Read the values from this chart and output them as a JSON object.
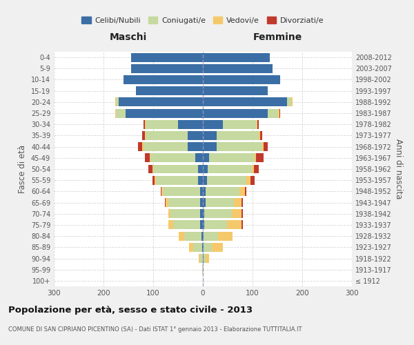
{
  "age_groups": [
    "100+",
    "95-99",
    "90-94",
    "85-89",
    "80-84",
    "75-79",
    "70-74",
    "65-69",
    "60-64",
    "55-59",
    "50-54",
    "45-49",
    "40-44",
    "35-39",
    "30-34",
    "25-29",
    "20-24",
    "15-19",
    "10-14",
    "5-9",
    "0-4"
  ],
  "birth_years": [
    "≤ 1912",
    "1913-1917",
    "1918-1922",
    "1923-1927",
    "1928-1932",
    "1933-1937",
    "1938-1942",
    "1943-1947",
    "1948-1952",
    "1953-1957",
    "1958-1962",
    "1963-1967",
    "1968-1972",
    "1973-1977",
    "1978-1982",
    "1983-1987",
    "1988-1992",
    "1993-1997",
    "1998-2002",
    "2003-2007",
    "2008-2012"
  ],
  "male": {
    "celibi": [
      0,
      0,
      0,
      2,
      3,
      5,
      5,
      5,
      5,
      10,
      10,
      15,
      30,
      30,
      50,
      155,
      170,
      135,
      160,
      145,
      145
    ],
    "coniugati": [
      0,
      1,
      5,
      18,
      35,
      55,
      60,
      65,
      75,
      85,
      90,
      90,
      90,
      85,
      65,
      20,
      5,
      0,
      0,
      0,
      0
    ],
    "vedovi": [
      0,
      1,
      4,
      8,
      10,
      10,
      5,
      5,
      3,
      2,
      2,
      2,
      2,
      2,
      2,
      2,
      2,
      0,
      0,
      0,
      0
    ],
    "divorziati": [
      0,
      0,
      0,
      0,
      0,
      0,
      0,
      2,
      2,
      5,
      8,
      10,
      8,
      5,
      2,
      0,
      0,
      0,
      0,
      0,
      0
    ]
  },
  "female": {
    "nubili": [
      0,
      0,
      1,
      2,
      2,
      3,
      3,
      5,
      5,
      8,
      10,
      12,
      28,
      28,
      40,
      130,
      170,
      130,
      155,
      140,
      135
    ],
    "coniugate": [
      0,
      1,
      4,
      16,
      28,
      45,
      55,
      58,
      68,
      80,
      88,
      92,
      92,
      85,
      68,
      22,
      8,
      0,
      0,
      0,
      0
    ],
    "vedove": [
      0,
      1,
      8,
      22,
      30,
      30,
      20,
      15,
      12,
      8,
      5,
      3,
      2,
      2,
      2,
      2,
      2,
      0,
      0,
      0,
      0
    ],
    "divorziate": [
      0,
      0,
      0,
      0,
      0,
      2,
      2,
      2,
      2,
      8,
      10,
      15,
      8,
      5,
      3,
      2,
      0,
      0,
      0,
      0,
      0
    ]
  },
  "colors": {
    "celibi": "#3b6ea5",
    "coniugati": "#c5d9a0",
    "vedovi": "#f5c96b",
    "divorziati": "#c0392b"
  },
  "title": "Popolazione per età, sesso e stato civile - 2013",
  "subtitle": "COMUNE DI SAN CIPRIANO PICENTINO (SA) - Dati ISTAT 1° gennaio 2013 - Elaborazione TUTTITALIA.IT",
  "xlabel_left": "Maschi",
  "xlabel_right": "Femmine",
  "ylabel_left": "Fasce di età",
  "ylabel_right": "Anni di nascita",
  "legend_labels": [
    "Celibi/Nubili",
    "Coniugati/e",
    "Vedovi/e",
    "Divorziati/e"
  ],
  "xlim": 300,
  "bg_color": "#f0f0f0",
  "plot_bg_color": "#ffffff",
  "grid_color": "#cccccc"
}
